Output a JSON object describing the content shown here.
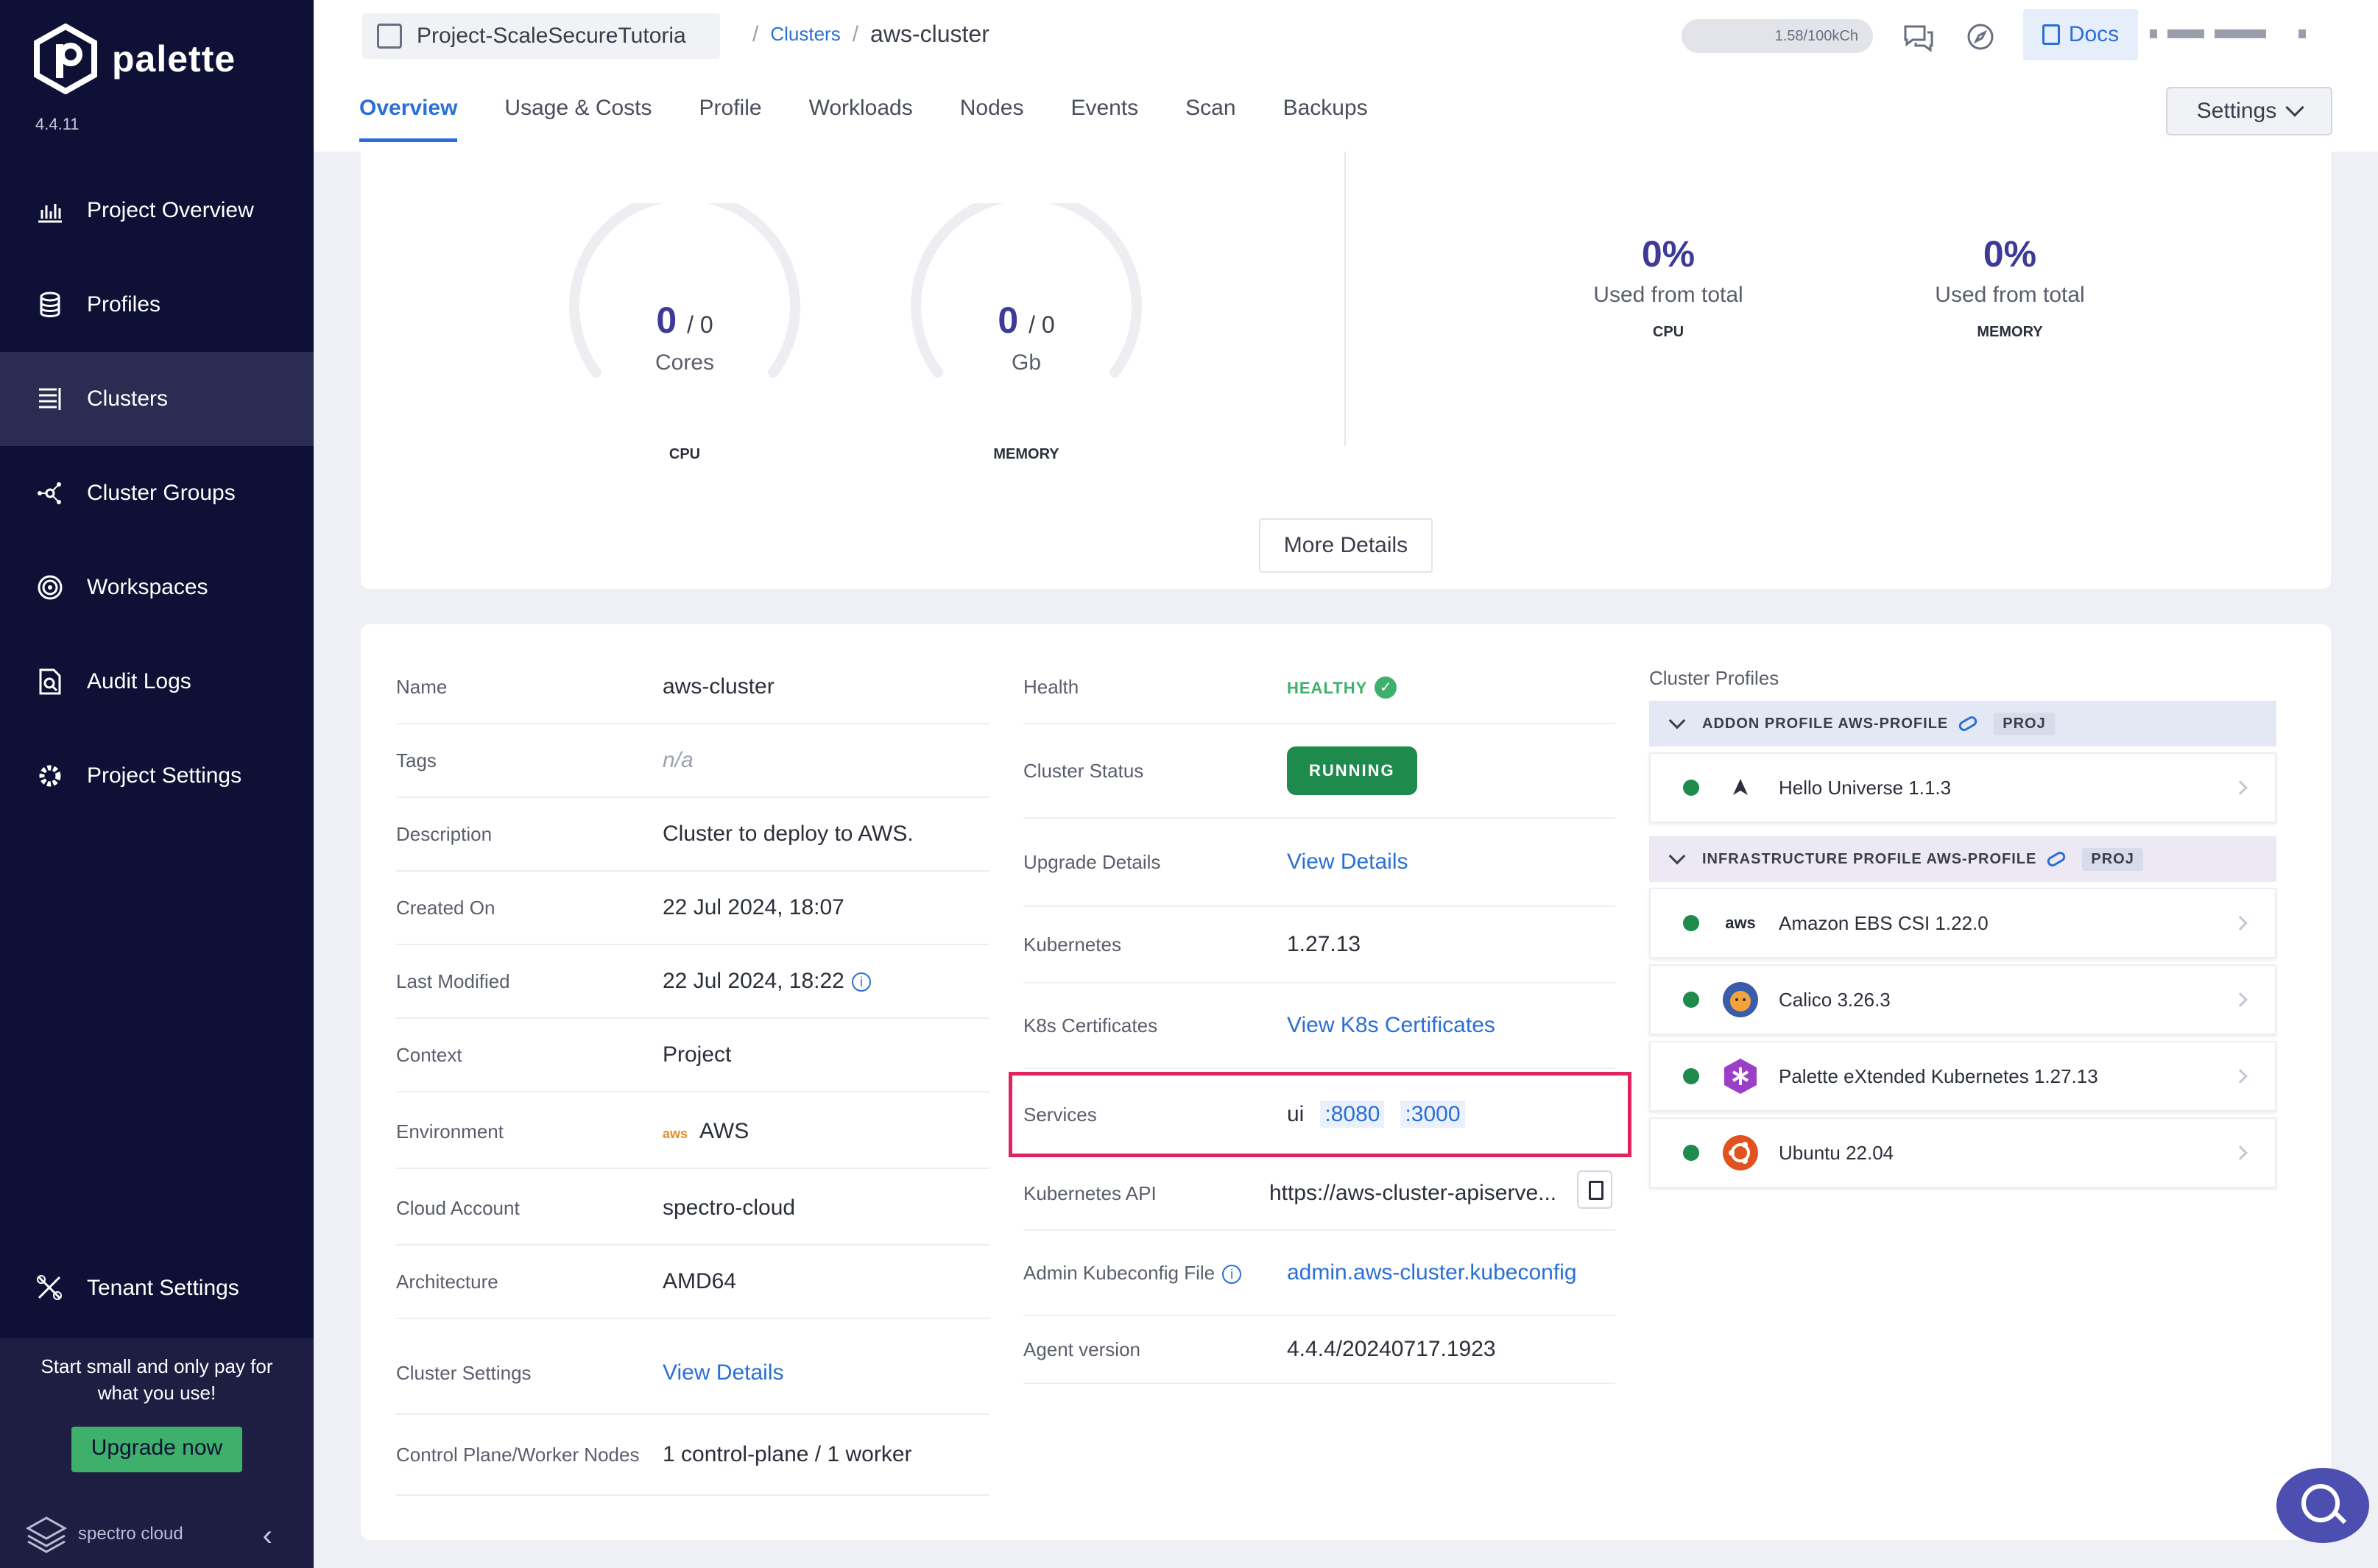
{
  "app": {
    "name": "palette",
    "version": "4.4.11"
  },
  "sidebar": {
    "items": [
      {
        "label": "Project Overview",
        "icon": "chart-icon"
      },
      {
        "label": "Profiles",
        "icon": "stack-icon"
      },
      {
        "label": "Clusters",
        "icon": "clusters-icon",
        "active": true
      },
      {
        "label": "Cluster Groups",
        "icon": "network-icon"
      },
      {
        "label": "Workspaces",
        "icon": "target-icon"
      },
      {
        "label": "Audit Logs",
        "icon": "audit-icon"
      },
      {
        "label": "Project Settings",
        "icon": "gear-icon"
      }
    ],
    "tenant_settings": "Tenant Settings",
    "upgrade_text": "Start small and only pay for what you use!",
    "upgrade_button": "Upgrade now",
    "footer_brand": "spectro cloud"
  },
  "header": {
    "project": "Project-ScaleSecureTutoria",
    "breadcrumb": {
      "parent": "Clusters",
      "current": "aws-cluster"
    },
    "credits": "1.58/100kCh",
    "docs": "Docs",
    "settings": "Settings"
  },
  "tabs": [
    "Overview",
    "Usage & Costs",
    "Profile",
    "Workloads",
    "Nodes",
    "Events",
    "Scan",
    "Backups"
  ],
  "usage": {
    "cpu_gauge": {
      "value": "0",
      "total": "/ 0",
      "unit": "Cores",
      "label": "CPU",
      "fraction": 0
    },
    "mem_gauge": {
      "value": "0",
      "total": "/ 0",
      "unit": "Gb",
      "label": "MEMORY",
      "fraction": 0
    },
    "cpu_pct": {
      "value": "0%",
      "text": "Used from total",
      "label": "CPU"
    },
    "mem_pct": {
      "value": "0%",
      "text": "Used from total",
      "label": "MEMORY"
    },
    "more_details": "More Details"
  },
  "details": {
    "left": [
      {
        "label": "Name",
        "value": "aws-cluster"
      },
      {
        "label": "Tags",
        "value": "n/a"
      },
      {
        "label": "Description",
        "value": "Cluster to deploy to AWS."
      },
      {
        "label": "Created On",
        "value": "22 Jul 2024, 18:07"
      },
      {
        "label": "Last Modified",
        "value": "22 Jul 2024, 18:22"
      },
      {
        "label": "Context",
        "value": "Project"
      },
      {
        "label": "Environment",
        "value": "AWS",
        "badge": "aws"
      },
      {
        "label": "Cloud Account",
        "value": "spectro-cloud"
      },
      {
        "label": "Architecture",
        "value": "AMD64"
      },
      {
        "label": "Cluster Settings",
        "value": "View Details"
      },
      {
        "label": "Control Plane/Worker Nodes",
        "value": "1 control-plane / 1 worker"
      }
    ],
    "right": {
      "health_label": "Health",
      "health_value": "HEALTHY",
      "status_label": "Cluster Status",
      "status_value": "RUNNING",
      "upgrade_label": "Upgrade Details",
      "upgrade_value": "View Details",
      "k8s_label": "Kubernetes",
      "k8s_value": "1.27.13",
      "cert_label": "K8s Certificates",
      "cert_value": "View K8s Certificates",
      "services_label": "Services",
      "services_prefix": "ui",
      "service_port_1": ":8080",
      "service_port_2": ":3000",
      "api_label": "Kubernetes API",
      "api_value": "https://aws-cluster-apiserve...",
      "kubeconfig_label": "Admin Kubeconfig File",
      "kubeconfig_value": "admin.aws-cluster.kubeconfig",
      "agent_label": "Agent version",
      "agent_value": "4.4.4/20240717.1923"
    }
  },
  "profiles": {
    "title": "Cluster Profiles",
    "addon_header": "ADDON PROFILE AWS-PROFILE",
    "infra_header": "INFRASTRUCTURE PROFILE AWS-PROFILE",
    "proj_badge": "PROJ",
    "addon_items": [
      "Hello Universe 1.1.3"
    ],
    "infra_items": [
      "Amazon EBS CSI 1.22.0",
      "Calico 3.26.3",
      "Palette eXtended Kubernetes 1.27.13",
      "Ubuntu 22.04"
    ],
    "aws_badge": "aws",
    "status_color": "#1e8a4c"
  }
}
